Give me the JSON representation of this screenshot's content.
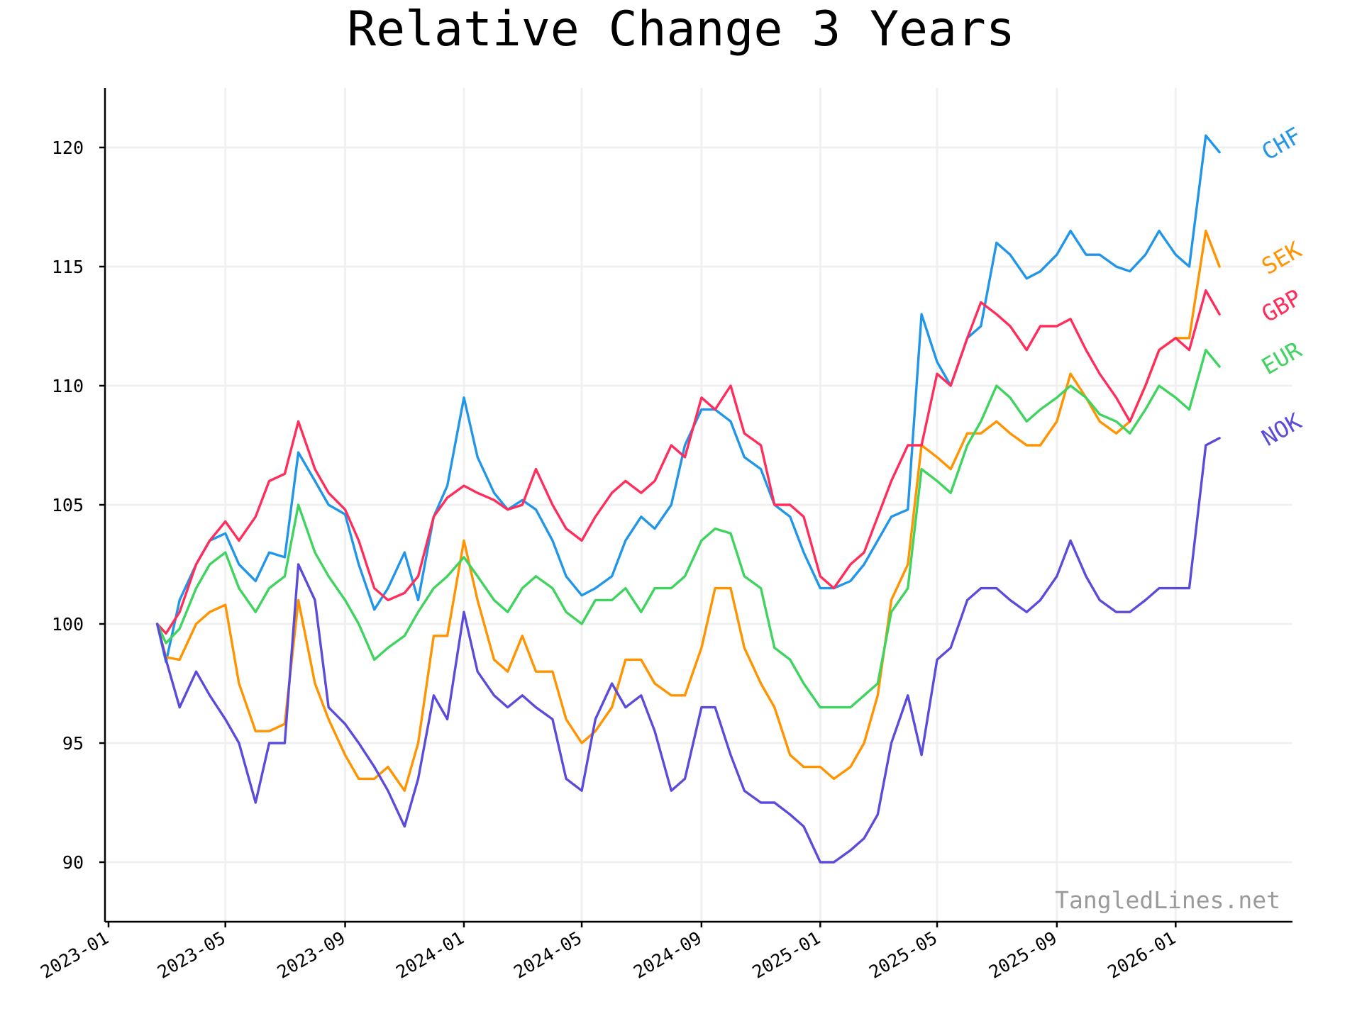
{
  "chart_data": {
    "type": "line",
    "title": "Relative Change 3 Years",
    "xlabel": "",
    "ylabel": "",
    "watermark": "TangledLines.net",
    "ylim": [
      87.5,
      122.5
    ],
    "xlim": [
      "2023-01",
      "2026-05"
    ],
    "y_ticks": [
      90,
      95,
      100,
      105,
      110,
      115,
      120
    ],
    "y_tick_labels": [
      "90",
      "95",
      "100",
      "105",
      "110",
      "115",
      "120"
    ],
    "x_ticks": [
      "2023-01",
      "2023-05",
      "2023-09",
      "2024-01",
      "2024-05",
      "2024-09",
      "2025-01",
      "2025-05",
      "2025-09",
      "2026-01"
    ],
    "grid": true,
    "legend": "inline-right",
    "x": [
      "2023-02-20",
      "2023-03-01",
      "2023-03-15",
      "2023-04-01",
      "2023-04-15",
      "2023-05-01",
      "2023-05-15",
      "2023-06-01",
      "2023-06-15",
      "2023-07-01",
      "2023-07-15",
      "2023-08-01",
      "2023-08-15",
      "2023-09-01",
      "2023-09-15",
      "2023-10-01",
      "2023-10-15",
      "2023-11-01",
      "2023-11-15",
      "2023-12-01",
      "2023-12-15",
      "2024-01-01",
      "2024-01-15",
      "2024-02-01",
      "2024-02-15",
      "2024-03-01",
      "2024-03-15",
      "2024-04-01",
      "2024-04-15",
      "2024-05-01",
      "2024-05-15",
      "2024-06-01",
      "2024-06-15",
      "2024-07-01",
      "2024-07-15",
      "2024-08-01",
      "2024-08-15",
      "2024-09-01",
      "2024-09-15",
      "2024-10-01",
      "2024-10-15",
      "2024-11-01",
      "2024-11-15",
      "2024-12-01",
      "2024-12-15",
      "2025-01-01",
      "2025-01-15",
      "2025-02-01",
      "2025-02-15",
      "2025-03-01",
      "2025-03-15",
      "2025-04-01",
      "2025-04-15",
      "2025-05-01",
      "2025-05-15",
      "2025-06-01",
      "2025-06-15",
      "2025-07-01",
      "2025-07-15",
      "2025-08-01",
      "2025-08-15",
      "2025-09-01",
      "2025-09-15",
      "2025-10-01",
      "2025-10-15",
      "2025-11-01",
      "2025-11-15",
      "2025-12-01",
      "2025-12-15",
      "2026-01-01",
      "2026-01-15",
      "2026-02-01",
      "2026-02-15"
    ],
    "series": [
      {
        "name": "CHF",
        "color": "#2196e8",
        "values": [
          100.0,
          98.4,
          101.0,
          102.5,
          103.5,
          103.8,
          102.5,
          101.8,
          103.0,
          102.8,
          107.2,
          106.0,
          105.0,
          104.6,
          102.5,
          100.6,
          101.5,
          103.0,
          101.0,
          104.5,
          105.8,
          109.5,
          107.0,
          105.5,
          104.8,
          105.2,
          104.8,
          103.5,
          102.0,
          101.2,
          101.5,
          102.0,
          103.5,
          104.5,
          104.0,
          105.0,
          107.5,
          109.0,
          109.0,
          108.5,
          107.0,
          106.5,
          105.0,
          104.5,
          103.0,
          101.5,
          101.5,
          101.8,
          102.5,
          103.5,
          104.5,
          104.8,
          113.0,
          111.0,
          110.0,
          112.0,
          112.5,
          116.0,
          115.5,
          114.5,
          114.8,
          115.5,
          116.5,
          115.5,
          115.5,
          115.0,
          114.8,
          115.5,
          116.5,
          115.5,
          115.0,
          120.5,
          119.8
        ]
      },
      {
        "name": "SEK",
        "color": "#ff9300",
        "values": [
          100.0,
          98.6,
          98.5,
          100.0,
          100.5,
          100.8,
          97.5,
          95.5,
          95.5,
          95.8,
          101.0,
          97.5,
          96.0,
          94.5,
          93.5,
          93.5,
          94.0,
          93.0,
          95.0,
          99.5,
          99.5,
          103.5,
          101.0,
          98.5,
          98.0,
          99.5,
          98.0,
          98.0,
          96.0,
          95.0,
          95.5,
          96.5,
          98.5,
          98.5,
          97.5,
          97.0,
          97.0,
          99.0,
          101.5,
          101.5,
          99.0,
          97.5,
          96.5,
          94.5,
          94.0,
          94.0,
          93.5,
          94.0,
          95.0,
          97.0,
          101.0,
          102.5,
          107.5,
          107.0,
          106.5,
          108.0,
          108.0,
          108.5,
          108.0,
          107.5,
          107.5,
          108.5,
          110.5,
          109.5,
          108.5,
          108.0,
          108.5,
          110.0,
          111.5,
          112.0,
          112.0,
          116.5,
          115.0
        ]
      },
      {
        "name": "GBP",
        "color": "#ff2d5b",
        "values": [
          100.0,
          99.6,
          100.5,
          102.5,
          103.5,
          104.3,
          103.5,
          104.5,
          106.0,
          106.3,
          108.5,
          106.5,
          105.5,
          104.8,
          103.5,
          101.5,
          101.0,
          101.3,
          102.0,
          104.5,
          105.3,
          105.8,
          105.5,
          105.2,
          104.8,
          105.0,
          106.5,
          105.0,
          104.0,
          103.5,
          104.5,
          105.5,
          106.0,
          105.5,
          106.0,
          107.5,
          107.0,
          109.5,
          109.0,
          110.0,
          108.0,
          107.5,
          105.0,
          105.0,
          104.5,
          102.0,
          101.5,
          102.5,
          103.0,
          104.5,
          106.0,
          107.5,
          107.5,
          110.5,
          110.0,
          112.0,
          113.5,
          113.0,
          112.5,
          111.5,
          112.5,
          112.5,
          112.8,
          111.5,
          110.5,
          109.5,
          108.5,
          110.0,
          111.5,
          112.0,
          111.5,
          114.0,
          113.0
        ]
      },
      {
        "name": "EUR",
        "color": "#3fd360",
        "values": [
          100.0,
          99.2,
          99.8,
          101.5,
          102.5,
          103.0,
          101.5,
          100.5,
          101.5,
          102.0,
          105.0,
          103.0,
          102.0,
          101.0,
          100.0,
          98.5,
          99.0,
          99.5,
          100.5,
          101.5,
          102.0,
          102.8,
          102.0,
          101.0,
          100.5,
          101.5,
          102.0,
          101.5,
          100.5,
          100.0,
          101.0,
          101.0,
          101.5,
          100.5,
          101.5,
          101.5,
          102.0,
          103.5,
          104.0,
          103.8,
          102.0,
          101.5,
          99.0,
          98.5,
          97.5,
          96.5,
          96.5,
          96.5,
          97.0,
          97.5,
          100.5,
          101.5,
          106.5,
          106.0,
          105.5,
          107.5,
          108.5,
          110.0,
          109.5,
          108.5,
          109.0,
          109.5,
          110.0,
          109.5,
          108.8,
          108.5,
          108.0,
          109.0,
          110.0,
          109.5,
          109.0,
          111.5,
          110.8
        ]
      },
      {
        "name": "NOK",
        "color": "#5b4bdb",
        "values": [
          100.0,
          98.5,
          96.5,
          98.0,
          97.0,
          96.0,
          95.0,
          92.5,
          95.0,
          95.0,
          102.5,
          101.0,
          96.5,
          95.8,
          95.0,
          94.0,
          93.0,
          91.5,
          93.5,
          97.0,
          96.0,
          100.5,
          98.0,
          97.0,
          96.5,
          97.0,
          96.5,
          96.0,
          93.5,
          93.0,
          96.0,
          97.5,
          96.5,
          97.0,
          95.5,
          93.0,
          93.5,
          96.5,
          96.5,
          94.5,
          93.0,
          92.5,
          92.5,
          92.0,
          91.5,
          90.0,
          90.0,
          90.5,
          91.0,
          92.0,
          95.0,
          97.0,
          94.5,
          98.5,
          99.0,
          101.0,
          101.5,
          101.5,
          101.0,
          100.5,
          101.0,
          102.0,
          103.5,
          102.0,
          101.0,
          100.5,
          100.5,
          101.0,
          101.5,
          101.5,
          101.5,
          107.5,
          107.8
        ]
      }
    ]
  }
}
